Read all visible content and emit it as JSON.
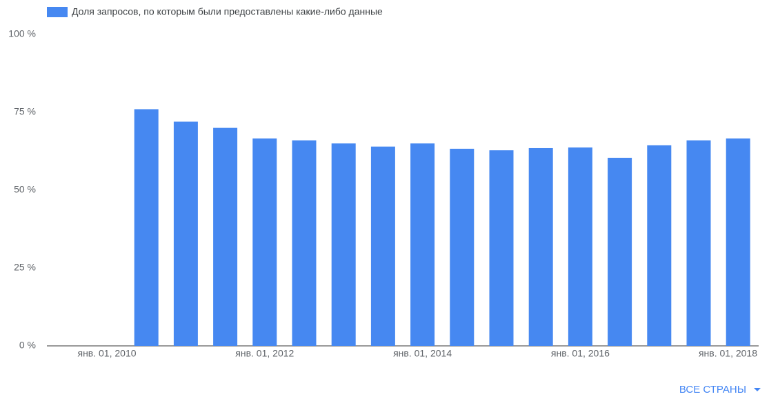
{
  "chart_data": {
    "type": "bar",
    "legend": "Доля запросов, по которым были предоставлены какие-либо данные",
    "categories": [
      "янв. 01, 2010",
      null,
      null,
      null,
      "янв. 01, 2012",
      null,
      null,
      null,
      "янв. 01, 2014",
      null,
      null,
      null,
      "янв. 01, 2016",
      null,
      null,
      null,
      "янв. 01, 2018"
    ],
    "values": [
      null,
      76,
      72,
      70,
      66.6,
      66,
      65,
      64,
      65,
      63.3,
      62.8,
      63.5,
      63.7,
      60.4,
      64.4,
      66,
      66.6
    ],
    "color": "#4688f1",
    "ylim": [
      0,
      100
    ],
    "yticks": [
      {
        "value": 0,
        "label": "0 %"
      },
      {
        "value": 25,
        "label": "25 %"
      },
      {
        "value": 50,
        "label": "50 %"
      },
      {
        "value": 75,
        "label": "75 %"
      },
      {
        "value": 100,
        "label": "100 %"
      }
    ],
    "grid": false
  },
  "filter": {
    "label": "ВСЕ СТРАНЫ"
  }
}
